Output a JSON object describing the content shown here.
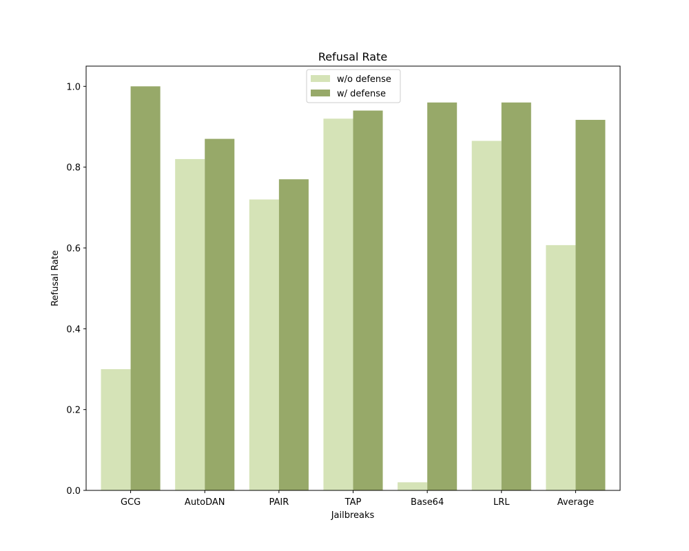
{
  "chart_data": {
    "type": "bar",
    "title": "Refusal Rate",
    "xlabel": "Jailbreaks",
    "ylabel": "Refusal Rate",
    "categories": [
      "GCG",
      "AutoDAN",
      "PAIR",
      "TAP",
      "Base64",
      "LRL",
      "Average"
    ],
    "series": [
      {
        "name": "w/o defense",
        "color": "#d5e3b7",
        "values": [
          0.3,
          0.82,
          0.72,
          0.92,
          0.02,
          0.865,
          0.607
        ]
      },
      {
        "name": "w/ defense",
        "color": "#97a969",
        "values": [
          1.0,
          0.87,
          0.77,
          0.94,
          0.96,
          0.96,
          0.917
        ]
      }
    ],
    "ylim": [
      0,
      1.05
    ],
    "yticks": [
      "0.0",
      "0.2",
      "0.4",
      "0.6",
      "0.8",
      "1.0"
    ],
    "grid": false,
    "legend_position": "top-center"
  }
}
